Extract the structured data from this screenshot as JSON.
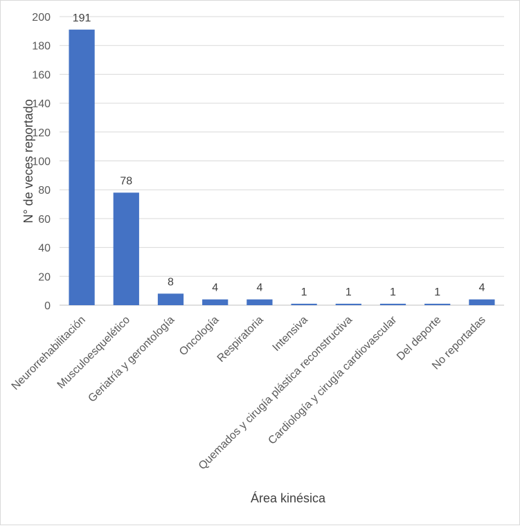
{
  "chart_data": {
    "type": "bar",
    "title": "",
    "xlabel": "Área kinésica",
    "ylabel": "N° de veces reportado",
    "categories": [
      "Neurorrehabilitación",
      "Musculoesquelético",
      "Geriatría y gerontología",
      "Oncología",
      "Respiratoria",
      "Intensiva",
      "Quemados y cirugía plástica reconstructiva",
      "Cardiología y cirugía cardiovascular",
      "Del deporte",
      "No reportadas"
    ],
    "values": [
      191,
      78,
      8,
      4,
      4,
      1,
      1,
      1,
      1,
      4
    ],
    "data_labels": [
      "191",
      "78",
      "8",
      "4",
      "4",
      "1",
      "1",
      "1",
      "1",
      "4"
    ],
    "ylim": [
      0,
      200
    ],
    "yticks": [
      0,
      20,
      40,
      60,
      80,
      100,
      120,
      140,
      160,
      180,
      200
    ],
    "grid": true,
    "legend": "none",
    "colors": {
      "bar": "#4472C4",
      "grid": "#d9d9d9",
      "text": "#404040",
      "tick": "#595959"
    }
  }
}
